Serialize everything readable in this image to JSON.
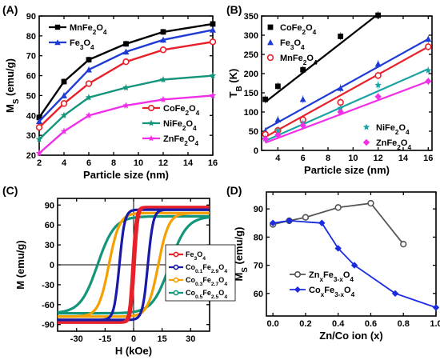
{
  "chart_data": [
    {
      "type": "line",
      "panel_label": "(A)",
      "xlabel": "Particle size (nm)",
      "ylabel": "M_S (emu/g)",
      "xlim": [
        2,
        16
      ],
      "ylim": [
        20,
        90
      ],
      "xticks": [
        2,
        4,
        6,
        8,
        10,
        12,
        14,
        16
      ],
      "yticks": [
        20,
        30,
        40,
        50,
        60,
        70,
        80,
        90
      ],
      "x": [
        2,
        4,
        6,
        9,
        12,
        16
      ],
      "series": [
        {
          "name": "MnFe2O4",
          "color": "#000000",
          "marker": "square",
          "values": [
            39,
            57,
            68,
            76,
            82,
            86
          ]
        },
        {
          "name": "Fe3O4",
          "color": "#1f3bd6",
          "marker": "triangle",
          "values": [
            37,
            50,
            63,
            72,
            78,
            83
          ]
        },
        {
          "name": "CoFe2O4",
          "color": "#e8202a",
          "marker": "circle",
          "values": [
            34,
            46,
            56,
            67,
            73,
            77
          ]
        },
        {
          "name": "NiFe2O4",
          "color": "#12957a",
          "marker": "star",
          "values": [
            28,
            40,
            49,
            54,
            58,
            60
          ]
        },
        {
          "name": "ZnFe2O4",
          "color": "#f030e8",
          "marker": "star",
          "values": [
            21,
            32,
            40,
            45,
            48,
            50
          ]
        }
      ],
      "legend_top": [
        "MnFe2O4",
        "Fe3O4"
      ],
      "legend_bottom": [
        "CoFe2O4",
        "NiFe2O4",
        "ZnFe2O4"
      ]
    },
    {
      "type": "scatter",
      "panel_label": "(B)",
      "xlabel": "Particle size (nm)",
      "ylabel": "T_B (K)",
      "xlim": [
        2.7,
        16.3
      ],
      "ylim": [
        0,
        350
      ],
      "xticks": [
        4,
        6,
        8,
        10,
        12,
        14,
        16
      ],
      "yticks": [
        0,
        50,
        100,
        150,
        200,
        250,
        300,
        350
      ],
      "series": [
        {
          "name": "CoFe2O4",
          "color": "#000000",
          "marker": "square",
          "x": [
            3,
            4,
            6,
            9,
            12
          ],
          "y": [
            133,
            167,
            210,
            297,
            352
          ],
          "fit": [
            [
              3,
              126
            ],
            [
              12,
              355
            ]
          ]
        },
        {
          "name": "Fe3O4",
          "color": "#1f3bd6",
          "marker": "triangle",
          "x": [
            3,
            4,
            6,
            9,
            12,
            16
          ],
          "y": [
            50,
            80,
            133,
            162,
            225,
            290
          ],
          "fit": [
            [
              3,
              55
            ],
            [
              16,
              290
            ]
          ]
        },
        {
          "name": "MnFe2O4",
          "color": "#e8202a",
          "marker": "circle",
          "x": [
            3,
            4,
            6,
            9,
            12,
            16
          ],
          "y": [
            42,
            52,
            80,
            125,
            195,
            270
          ],
          "fit": [
            [
              3,
              35
            ],
            [
              16,
              270
            ]
          ]
        },
        {
          "name": "NiFe2O4",
          "color": "#19a3a3",
          "marker": "star",
          "x": [
            3,
            4,
            6,
            9,
            12,
            16
          ],
          "y": [
            30,
            52,
            70,
            110,
            170,
            208
          ],
          "fit": [
            [
              3,
              25
            ],
            [
              16,
              212
            ]
          ]
        },
        {
          "name": "ZnFe2O4",
          "color": "#f030e8",
          "marker": "diamond",
          "x": [
            3,
            4,
            6,
            9,
            12,
            16
          ],
          "y": [
            30,
            40,
            65,
            100,
            140,
            180
          ],
          "fit": [
            [
              3,
              20
            ],
            [
              16,
              180
            ]
          ]
        }
      ],
      "legend_top": [
        "CoFe2O4",
        "Fe3O4",
        "MnFe2O4"
      ],
      "legend_bottom": [
        "NiFe2O4",
        "ZnFe2O4"
      ]
    },
    {
      "type": "line",
      "panel_label": "(C)",
      "xlabel": "H (kOe)",
      "ylabel": "M (emu/g)",
      "xlim": [
        -40,
        40
      ],
      "ylim": [
        -100,
        100
      ],
      "xticks": [
        -30,
        -15,
        0,
        15,
        30
      ],
      "yticks": [
        -90,
        -60,
        -30,
        0,
        30,
        60,
        90
      ],
      "series": [
        {
          "name": "Fe3O4",
          "color": "#e8202a",
          "ms": 87,
          "hc": 0.5,
          "h0": 1.8
        },
        {
          "name": "Co0.1Fe2.9O4",
          "color": "#1a1aa8",
          "ms": 83,
          "hc": 7.5,
          "h0": 2.8
        },
        {
          "name": "Co0.3Fe2.7O4",
          "color": "#f5a000",
          "ms": 78,
          "hc": 13,
          "h0": 5.5
        },
        {
          "name": "Co0.5Fe2.5O4",
          "color": "#12957a",
          "ms": 73,
          "hc": 19,
          "h0": 9
        }
      ],
      "legend_labels": [
        [
          "Fe",
          "3",
          "O",
          "4"
        ],
        [
          "Co",
          "0.1",
          "Fe",
          "2.9",
          "O",
          "4"
        ],
        [
          "Co",
          "0.3",
          "Fe",
          "2.7",
          "O",
          "4"
        ],
        [
          "Co",
          "0.5",
          "Fe",
          "2.5",
          "O",
          "4"
        ]
      ]
    },
    {
      "type": "line",
      "panel_label": "(D)",
      "xlabel": "Zn/Co ion (x)",
      "ylabel": "M_S (emu/g)",
      "xlim": [
        -0.04,
        1.0
      ],
      "ylim": [
        52,
        96
      ],
      "xticks": [
        0.0,
        0.2,
        0.4,
        0.6,
        0.8,
        1.0
      ],
      "yticks": [
        60,
        70,
        80,
        90
      ],
      "series": [
        {
          "name": "ZnxFe3-xO4",
          "color": "#555555",
          "marker": "circle-open",
          "x": [
            0.0,
            0.1,
            0.2,
            0.4,
            0.6,
            0.8
          ],
          "y": [
            84.5,
            85.8,
            87,
            90.5,
            92,
            77.5
          ]
        },
        {
          "name": "CoxFe3-xO4",
          "color": "#1a2be0",
          "marker": "diamond",
          "x": [
            0.0,
            0.1,
            0.3,
            0.4,
            0.5,
            0.75,
            1.0
          ],
          "y": [
            85,
            85.8,
            85,
            76,
            70,
            60,
            55
          ]
        }
      ],
      "legend_labels": [
        [
          "Zn",
          "x",
          "Fe",
          "3-x",
          "O",
          "4"
        ],
        [
          "Co",
          "x",
          "Fe",
          "3-x",
          "O",
          "4"
        ]
      ]
    }
  ]
}
